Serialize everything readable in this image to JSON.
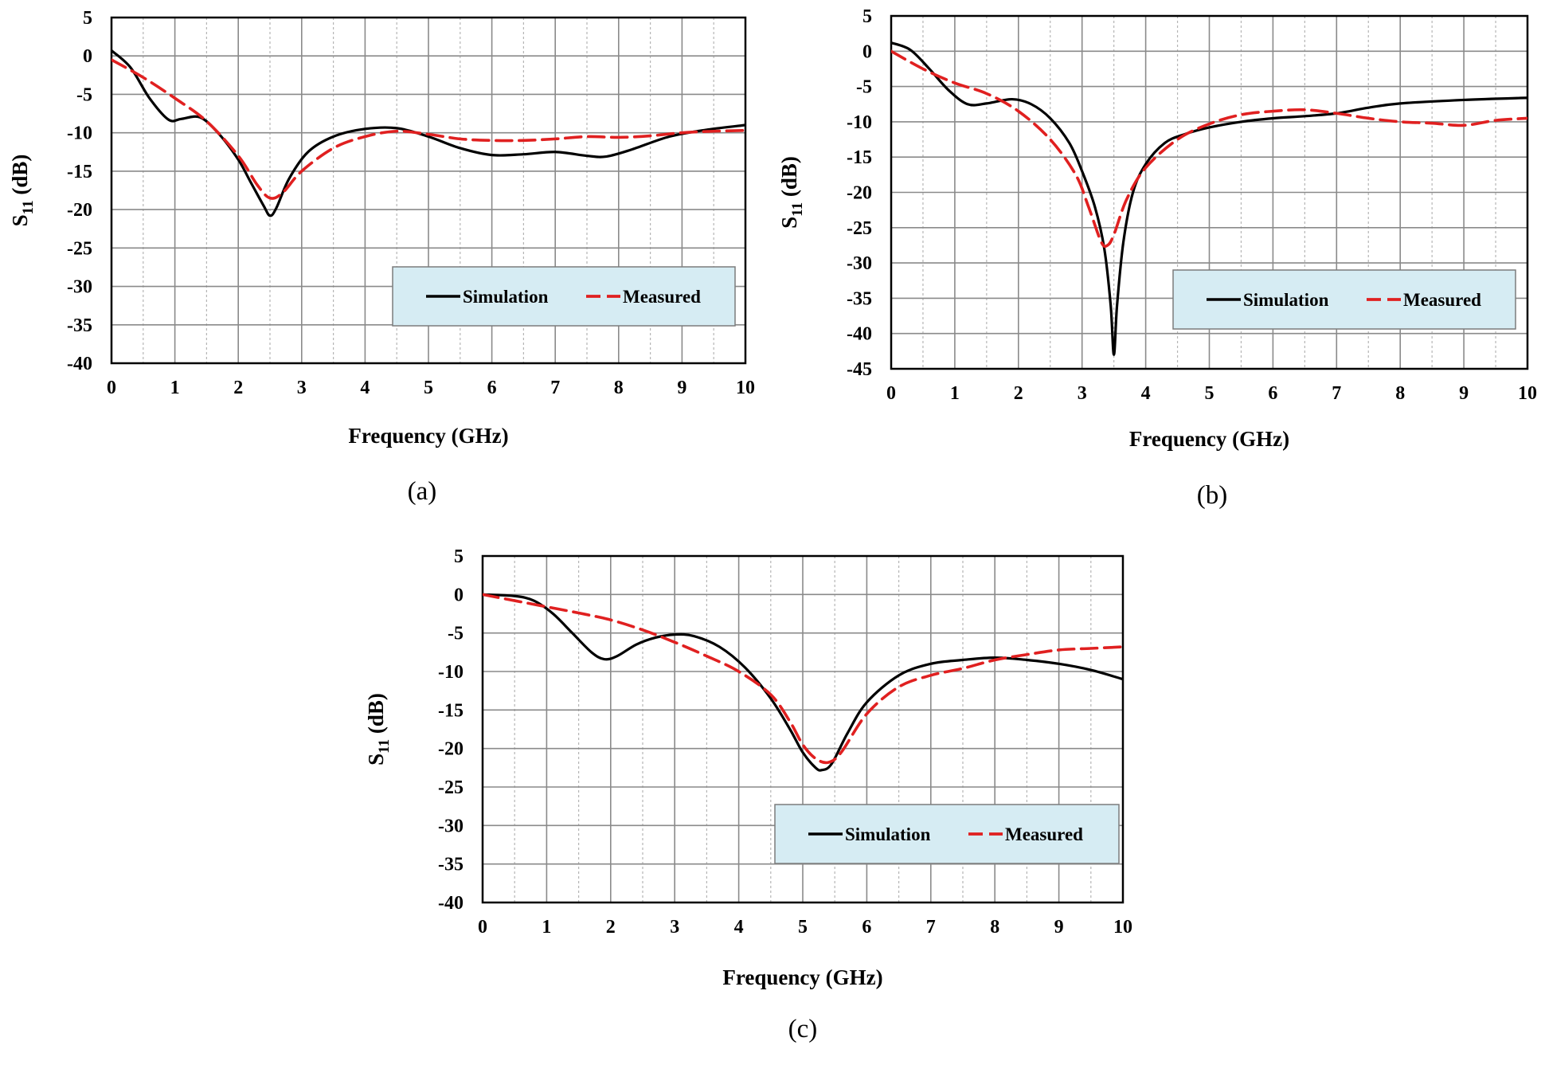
{
  "chart_data": [
    {
      "id": "a",
      "type": "line",
      "caption": "(a)",
      "xlabel": "Frequency (GHz)",
      "ylabel_main": "S",
      "ylabel_sub": "11",
      "ylabel_unit": "(dB)",
      "xlim": [
        0,
        10
      ],
      "ylim": [
        -40,
        5
      ],
      "xticks": [
        0,
        1,
        2,
        3,
        4,
        5,
        6,
        7,
        8,
        9,
        10
      ],
      "yticks": [
        5,
        0,
        -5,
        -10,
        -15,
        -20,
        -25,
        -30,
        -35,
        -40
      ],
      "grid": true,
      "legend_position": "lower-right",
      "colors": {
        "simulation": "#000000",
        "measured": "#e02020",
        "legend_fill": "#d6ecf3"
      },
      "series": [
        {
          "name": "Simulation",
          "style": "solid",
          "x": [
            0,
            0.3,
            0.6,
            0.9,
            1.1,
            1.4,
            1.7,
            2.0,
            2.2,
            2.4,
            2.5,
            2.6,
            2.8,
            3.1,
            3.5,
            4.0,
            4.5,
            5.0,
            5.5,
            6.0,
            6.5,
            7.0,
            7.5,
            7.8,
            8.2,
            8.8,
            9.4,
            10.0
          ],
          "y": [
            0.7,
            -1.5,
            -5.5,
            -8.3,
            -8.2,
            -8.0,
            -10.2,
            -13.5,
            -16.5,
            -19.5,
            -20.8,
            -19.8,
            -16.0,
            -12.5,
            -10.5,
            -9.5,
            -9.4,
            -10.5,
            -12.0,
            -12.9,
            -12.8,
            -12.5,
            -13.0,
            -13.1,
            -12.2,
            -10.5,
            -9.6,
            -9.0
          ]
        },
        {
          "name": "Measured",
          "style": "dashed",
          "x": [
            0,
            0.5,
            1.0,
            1.5,
            2.0,
            2.3,
            2.5,
            2.7,
            3.0,
            3.5,
            4.0,
            4.5,
            5.0,
            5.5,
            6.0,
            6.5,
            7.0,
            7.5,
            8.0,
            8.5,
            9.0,
            9.5,
            10.0
          ],
          "y": [
            -0.5,
            -2.8,
            -5.5,
            -8.5,
            -13.0,
            -16.8,
            -18.5,
            -17.8,
            -15.0,
            -12.0,
            -10.5,
            -9.8,
            -10.2,
            -10.8,
            -11.0,
            -11.0,
            -10.8,
            -10.5,
            -10.6,
            -10.4,
            -10.0,
            -9.8,
            -9.7
          ]
        }
      ]
    },
    {
      "id": "b",
      "type": "line",
      "caption": "(b)",
      "xlabel": "Frequency (GHz)",
      "ylabel_main": "S",
      "ylabel_sub": "11",
      "ylabel_unit": "(dB)",
      "xlim": [
        0,
        10
      ],
      "ylim": [
        -45,
        5
      ],
      "xticks": [
        0,
        1,
        2,
        3,
        4,
        5,
        6,
        7,
        8,
        9,
        10
      ],
      "yticks": [
        5,
        0,
        -5,
        -10,
        -15,
        -20,
        -25,
        -30,
        -35,
        -40,
        -45
      ],
      "grid": true,
      "legend_position": "lower-right",
      "colors": {
        "simulation": "#000000",
        "measured": "#e02020",
        "legend_fill": "#d6ecf3"
      },
      "series": [
        {
          "name": "Simulation",
          "style": "solid",
          "x": [
            0,
            0.3,
            0.6,
            0.9,
            1.2,
            1.5,
            1.9,
            2.2,
            2.5,
            2.8,
            3.0,
            3.2,
            3.35,
            3.45,
            3.5,
            3.55,
            3.65,
            3.8,
            4.0,
            4.3,
            4.6,
            5.0,
            5.5,
            6.0,
            6.5,
            7.0,
            7.5,
            8.0,
            9.0,
            10.0
          ],
          "y": [
            1.2,
            0.2,
            -2.5,
            -5.5,
            -7.5,
            -7.4,
            -6.8,
            -7.5,
            -9.5,
            -13.0,
            -17.0,
            -22.0,
            -28.0,
            -36.0,
            -43.0,
            -36.0,
            -27.0,
            -20.0,
            -16.0,
            -13.0,
            -11.8,
            -10.8,
            -10.0,
            -9.5,
            -9.2,
            -8.8,
            -8.0,
            -7.4,
            -6.9,
            -6.6
          ]
        },
        {
          "name": "Measured",
          "style": "dashed",
          "x": [
            0,
            0.5,
            1.0,
            1.5,
            2.0,
            2.5,
            2.9,
            3.1,
            3.3,
            3.4,
            3.5,
            3.7,
            4.0,
            4.5,
            5.0,
            5.5,
            6.0,
            6.5,
            7.0,
            7.5,
            8.0,
            8.5,
            9.0,
            9.5,
            10.0
          ],
          "y": [
            0,
            -2.5,
            -4.5,
            -6.0,
            -8.5,
            -12.5,
            -17.5,
            -22.0,
            -27.0,
            -27.5,
            -26.0,
            -21.0,
            -16.5,
            -12.5,
            -10.3,
            -9.0,
            -8.5,
            -8.3,
            -8.8,
            -9.5,
            -10.0,
            -10.2,
            -10.5,
            -9.8,
            -9.5
          ]
        }
      ]
    },
    {
      "id": "c",
      "type": "line",
      "caption": "(c)",
      "xlabel": "Frequency (GHz)",
      "ylabel_main": "S",
      "ylabel_sub": "11",
      "ylabel_unit": "(dB)",
      "xlim": [
        0,
        10
      ],
      "ylim": [
        -40,
        5
      ],
      "xticks": [
        0,
        1,
        2,
        3,
        4,
        5,
        6,
        7,
        8,
        9,
        10
      ],
      "yticks": [
        5,
        0,
        -5,
        -10,
        -15,
        -20,
        -25,
        -30,
        -35,
        -40
      ],
      "grid": true,
      "legend_position": "lower-right",
      "colors": {
        "simulation": "#000000",
        "measured": "#e02020",
        "legend_fill": "#d6ecf3"
      },
      "series": [
        {
          "name": "Simulation",
          "style": "solid",
          "x": [
            0,
            0.5,
            0.8,
            1.1,
            1.4,
            1.7,
            1.9,
            2.1,
            2.4,
            2.7,
            3.0,
            3.3,
            3.7,
            4.1,
            4.5,
            4.8,
            5.0,
            5.2,
            5.3,
            5.45,
            5.7,
            6.0,
            6.5,
            7.0,
            7.5,
            8.0,
            8.5,
            9.0,
            9.5,
            10.0
          ],
          "y": [
            0,
            -0.2,
            -0.8,
            -2.5,
            -5.0,
            -7.5,
            -8.4,
            -8.0,
            -6.5,
            -5.6,
            -5.2,
            -5.4,
            -6.8,
            -9.5,
            -13.5,
            -17.5,
            -20.5,
            -22.5,
            -22.8,
            -22.0,
            -18.0,
            -14.0,
            -10.5,
            -9.0,
            -8.5,
            -8.2,
            -8.5,
            -9.0,
            -9.8,
            -11.0
          ]
        },
        {
          "name": "Measured",
          "style": "dashed",
          "x": [
            0,
            0.5,
            1.0,
            1.5,
            2.0,
            2.5,
            3.0,
            3.5,
            4.0,
            4.5,
            4.8,
            5.0,
            5.2,
            5.4,
            5.6,
            6.0,
            6.5,
            7.0,
            7.5,
            8.0,
            8.5,
            9.0,
            9.5,
            10.0
          ],
          "y": [
            0,
            -0.8,
            -1.6,
            -2.4,
            -3.3,
            -4.6,
            -6.2,
            -8.0,
            -10.0,
            -13.0,
            -16.5,
            -19.5,
            -21.3,
            -21.8,
            -20.5,
            -15.5,
            -12.0,
            -10.5,
            -9.6,
            -8.5,
            -7.8,
            -7.2,
            -7.0,
            -6.8
          ]
        }
      ]
    }
  ]
}
